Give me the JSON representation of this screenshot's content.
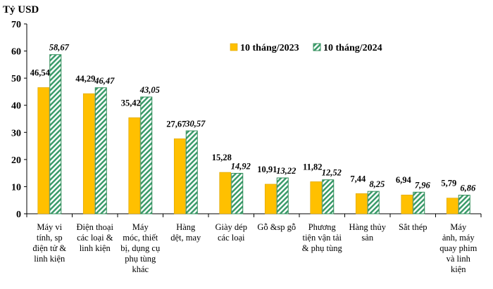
{
  "chart_data": {
    "type": "bar",
    "ylabel": "Tỷ USD",
    "ylim": [
      0,
      70
    ],
    "yticks": [
      0,
      10,
      20,
      30,
      40,
      50,
      60,
      70
    ],
    "grid": false,
    "legend_position": "top-right",
    "categories": [
      "Máy vi\ntính, sp\nđiện tử &\nlinh kiện",
      "Điện thoại\ncác loại &\nlinh kiện",
      "Máy\nmóc, thiết\nbị, dụng cụ\nphụ tùng\nkhác",
      "Hàng\ndệt, may",
      "Giày dép\ncác loại",
      "Gỗ &sp gỗ",
      "Phương\ntiện vận tải\n& phụ tùng",
      "Hàng thủy\nsản",
      "Sắt thép",
      "Máy\nảnh, máy\nquay phim\nvà linh\nkiện"
    ],
    "series": [
      {
        "name": "10 tháng/2023",
        "color": "#FFC000",
        "values": [
          46.54,
          44.29,
          35.42,
          27.67,
          15.28,
          10.91,
          11.82,
          7.44,
          6.94,
          5.79
        ],
        "labels": [
          "46,54",
          "44,29",
          "35,42",
          "27,67",
          "15,28",
          "10,91",
          "11,82",
          "7,44",
          "6,94",
          "5,79"
        ]
      },
      {
        "name": "10 tháng/2024",
        "color": "#2E8B57",
        "pattern": "diagonal-stripes",
        "values": [
          58.67,
          46.47,
          43.05,
          30.57,
          14.92,
          13.22,
          12.52,
          8.25,
          7.96,
          6.86
        ],
        "labels": [
          "58,67",
          "46,47",
          "43,05",
          "30,57",
          "14,92",
          "13,22",
          "12,52",
          "8,25",
          "7,96",
          "6,86"
        ]
      }
    ]
  }
}
